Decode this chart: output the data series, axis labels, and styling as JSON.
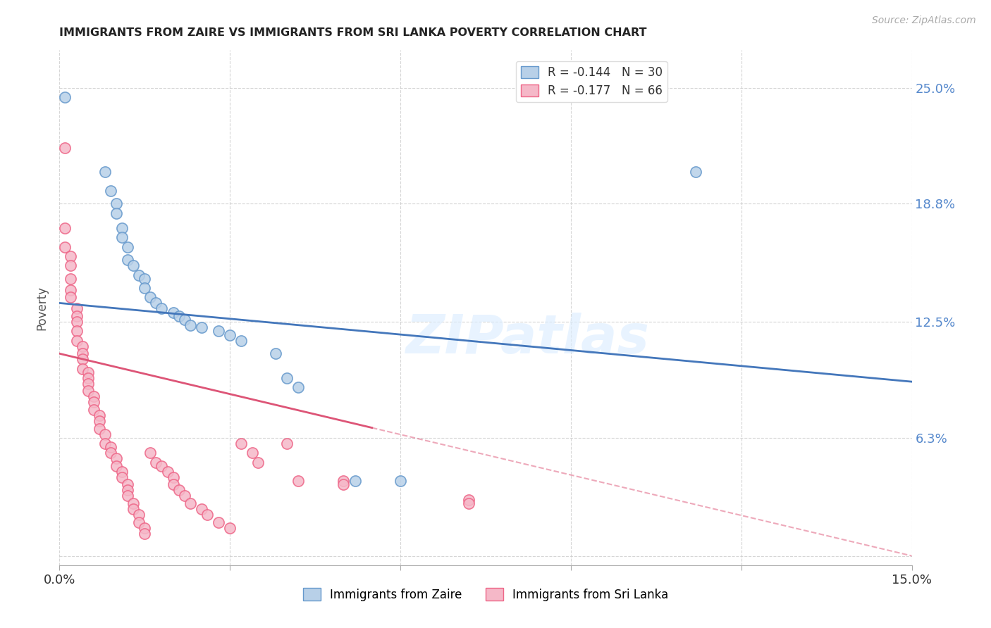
{
  "title": "IMMIGRANTS FROM ZAIRE VS IMMIGRANTS FROM SRI LANKA POVERTY CORRELATION CHART",
  "source": "Source: ZipAtlas.com",
  "ylabel": "Poverty",
  "xlim": [
    0.0,
    0.15
  ],
  "ylim": [
    -0.005,
    0.27
  ],
  "legend_zaire_r": "-0.144",
  "legend_zaire_n": "30",
  "legend_srilanka_r": "-0.177",
  "legend_srilanka_n": "66",
  "color_zaire_fill": "#b8d0e8",
  "color_srilanka_fill": "#f5b8c8",
  "color_zaire_edge": "#6699cc",
  "color_srilanka_edge": "#ee6688",
  "color_zaire_line": "#4477bb",
  "color_srilanka_line": "#dd5577",
  "watermark": "ZIPatlas",
  "zaire_line_intercept": 0.135,
  "zaire_line_slope": -0.28,
  "srilanka_line_intercept": 0.108,
  "srilanka_line_slope": -0.72,
  "zaire_points": [
    [
      0.001,
      0.245
    ],
    [
      0.008,
      0.205
    ],
    [
      0.009,
      0.195
    ],
    [
      0.01,
      0.188
    ],
    [
      0.01,
      0.183
    ],
    [
      0.011,
      0.175
    ],
    [
      0.011,
      0.17
    ],
    [
      0.012,
      0.165
    ],
    [
      0.012,
      0.158
    ],
    [
      0.013,
      0.155
    ],
    [
      0.014,
      0.15
    ],
    [
      0.015,
      0.148
    ],
    [
      0.015,
      0.143
    ],
    [
      0.016,
      0.138
    ],
    [
      0.017,
      0.135
    ],
    [
      0.018,
      0.132
    ],
    [
      0.02,
      0.13
    ],
    [
      0.021,
      0.128
    ],
    [
      0.022,
      0.126
    ],
    [
      0.023,
      0.123
    ],
    [
      0.025,
      0.122
    ],
    [
      0.028,
      0.12
    ],
    [
      0.03,
      0.118
    ],
    [
      0.032,
      0.115
    ],
    [
      0.038,
      0.108
    ],
    [
      0.04,
      0.095
    ],
    [
      0.042,
      0.09
    ],
    [
      0.052,
      0.04
    ],
    [
      0.06,
      0.04
    ],
    [
      0.112,
      0.205
    ]
  ],
  "srilanka_points": [
    [
      0.001,
      0.218
    ],
    [
      0.001,
      0.175
    ],
    [
      0.001,
      0.165
    ],
    [
      0.002,
      0.16
    ],
    [
      0.002,
      0.155
    ],
    [
      0.002,
      0.148
    ],
    [
      0.002,
      0.142
    ],
    [
      0.002,
      0.138
    ],
    [
      0.003,
      0.132
    ],
    [
      0.003,
      0.128
    ],
    [
      0.003,
      0.125
    ],
    [
      0.003,
      0.12
    ],
    [
      0.003,
      0.115
    ],
    [
      0.004,
      0.112
    ],
    [
      0.004,
      0.108
    ],
    [
      0.004,
      0.105
    ],
    [
      0.004,
      0.1
    ],
    [
      0.005,
      0.098
    ],
    [
      0.005,
      0.095
    ],
    [
      0.005,
      0.092
    ],
    [
      0.005,
      0.088
    ],
    [
      0.006,
      0.085
    ],
    [
      0.006,
      0.082
    ],
    [
      0.006,
      0.078
    ],
    [
      0.007,
      0.075
    ],
    [
      0.007,
      0.072
    ],
    [
      0.007,
      0.068
    ],
    [
      0.008,
      0.065
    ],
    [
      0.008,
      0.06
    ],
    [
      0.009,
      0.058
    ],
    [
      0.009,
      0.055
    ],
    [
      0.01,
      0.052
    ],
    [
      0.01,
      0.048
    ],
    [
      0.011,
      0.045
    ],
    [
      0.011,
      0.042
    ],
    [
      0.012,
      0.038
    ],
    [
      0.012,
      0.035
    ],
    [
      0.012,
      0.032
    ],
    [
      0.013,
      0.028
    ],
    [
      0.013,
      0.025
    ],
    [
      0.014,
      0.022
    ],
    [
      0.014,
      0.018
    ],
    [
      0.015,
      0.015
    ],
    [
      0.015,
      0.012
    ],
    [
      0.016,
      0.055
    ],
    [
      0.017,
      0.05
    ],
    [
      0.018,
      0.048
    ],
    [
      0.019,
      0.045
    ],
    [
      0.02,
      0.042
    ],
    [
      0.02,
      0.038
    ],
    [
      0.021,
      0.035
    ],
    [
      0.022,
      0.032
    ],
    [
      0.023,
      0.028
    ],
    [
      0.025,
      0.025
    ],
    [
      0.026,
      0.022
    ],
    [
      0.028,
      0.018
    ],
    [
      0.03,
      0.015
    ],
    [
      0.032,
      0.06
    ],
    [
      0.034,
      0.055
    ],
    [
      0.035,
      0.05
    ],
    [
      0.04,
      0.06
    ],
    [
      0.042,
      0.04
    ],
    [
      0.05,
      0.04
    ],
    [
      0.05,
      0.038
    ],
    [
      0.072,
      0.03
    ],
    [
      0.072,
      0.028
    ]
  ]
}
